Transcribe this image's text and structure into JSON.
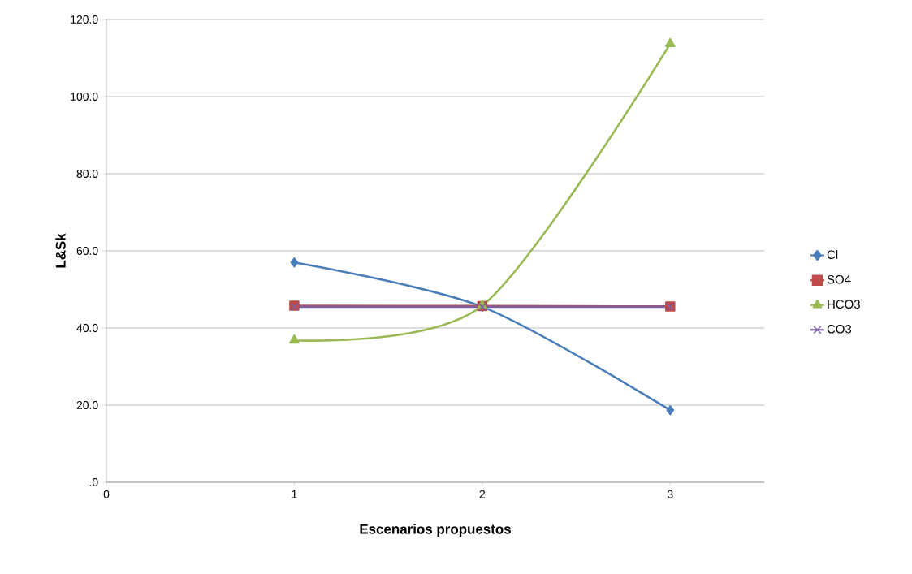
{
  "chart_data": {
    "type": "line",
    "xlabel": "Escenarios propuestos",
    "ylabel": "L&Sk",
    "x": [
      1,
      2,
      3
    ],
    "xlim": [
      0,
      3.5
    ],
    "xticks": [
      0,
      1,
      2,
      3
    ],
    "ylim": [
      0,
      120
    ],
    "yticks": [
      {
        "value": 0,
        "label": ".0"
      },
      {
        "value": 20,
        "label": "20.0"
      },
      {
        "value": 40,
        "label": "40.0"
      },
      {
        "value": 60,
        "label": "60.0"
      },
      {
        "value": 80,
        "label": "80.0"
      },
      {
        "value": 100,
        "label": "100.0"
      },
      {
        "value": 120,
        "label": "120.0"
      }
    ],
    "grid": "y",
    "legend": "right",
    "line_style": "solid",
    "series": [
      {
        "name": "Cl",
        "color": "#4a7ebb",
        "marker": "diamond",
        "values": [
          57.0,
          45.5,
          18.7
        ]
      },
      {
        "name": "SO4",
        "color": "#be4b48",
        "marker": "square",
        "values": [
          45.8,
          45.7,
          45.6
        ]
      },
      {
        "name": "HCO3",
        "color": "#98b954",
        "marker": "triangle",
        "values": [
          36.8,
          45.8,
          113.7
        ]
      },
      {
        "name": "CO3",
        "color": "#7d60a0",
        "marker": "cross",
        "values": [
          45.5,
          45.5,
          45.5
        ]
      }
    ]
  }
}
